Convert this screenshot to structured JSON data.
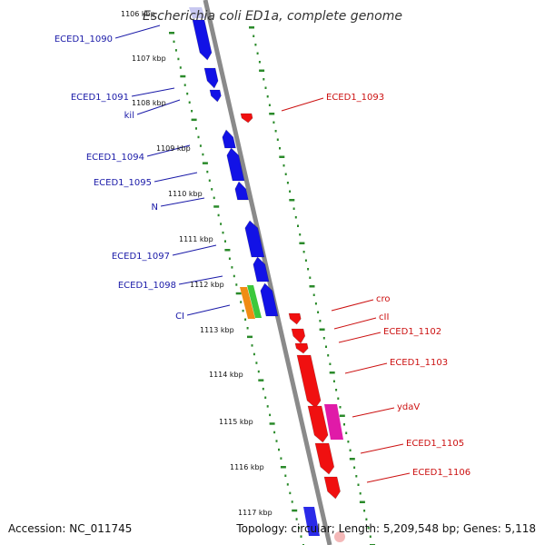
{
  "title": "Escherichia coli ED1a, complete genome",
  "footer": {
    "accession": "Accession: NC_011745",
    "topology": "Topology: circular; Length: 5,209,548 bp; Genes: 5,118"
  },
  "colors": {
    "forward": "#1212e6",
    "reverse": "#f01010",
    "orange": "#f08c14",
    "green": "#3cc83c",
    "magenta": "#e01aa8",
    "backbone": "#8a8a8a",
    "ticks": "#2a8a2a",
    "label_forward": "#1a1aa8",
    "label_reverse": "#cc1111"
  },
  "kbp_ticks": [
    "1106 kbp",
    "1107 kbp",
    "1108 kbp",
    "1109 kbp",
    "1110 kbp",
    "1111 kbp",
    "1112 kbp",
    "1113 kbp",
    "1114 kbp",
    "1115 kbp",
    "1116 kbp",
    "1117 kbp"
  ],
  "forward_genes": [
    {
      "label": "ECED1_1090"
    },
    {
      "label": "ECED1_1091"
    },
    {
      "label": "kil"
    },
    {
      "label": "ECED1_1094"
    },
    {
      "label": "ECED1_1095"
    },
    {
      "label": "N"
    },
    {
      "label": "ECED1_1097"
    },
    {
      "label": "ECED1_1098"
    },
    {
      "label": "CI"
    }
  ],
  "reverse_genes": [
    {
      "label": "ECED1_1093"
    },
    {
      "label": "cro"
    },
    {
      "label": "cII"
    },
    {
      "label": "ECED1_1102"
    },
    {
      "label": "ECED1_1103"
    },
    {
      "label": "ydaV"
    },
    {
      "label": "ECED1_1105"
    },
    {
      "label": "ECED1_1106"
    }
  ]
}
